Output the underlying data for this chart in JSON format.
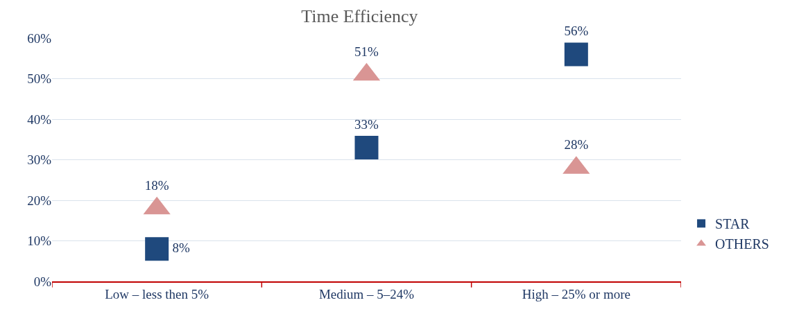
{
  "chart_data": {
    "type": "scatter",
    "title": "Time Efficiency",
    "categories": [
      "Low – less then 5%",
      "Medium – 5–24%",
      "High – 25% or more"
    ],
    "series": [
      {
        "name": "STAR",
        "color": "#1f497d",
        "marker": "square",
        "values": [
          8,
          33,
          56
        ],
        "value_labels": [
          "8%",
          "33%",
          "56%"
        ]
      },
      {
        "name": "OTHERS",
        "color": "#d99594",
        "marker": "triangle",
        "values": [
          18,
          51,
          28
        ],
        "value_labels": [
          "18%",
          "51%",
          "28%"
        ]
      }
    ],
    "ylim": [
      0,
      60
    ],
    "yticks": [
      {
        "value": 0,
        "label": "0%"
      },
      {
        "value": 10,
        "label": "10%"
      },
      {
        "value": 20,
        "label": "20%"
      },
      {
        "value": 30,
        "label": "30%"
      },
      {
        "value": 40,
        "label": "40%"
      },
      {
        "value": 50,
        "label": "50%"
      },
      {
        "value": 60,
        "label": "60%"
      }
    ],
    "grid": "y",
    "legend": "right"
  }
}
